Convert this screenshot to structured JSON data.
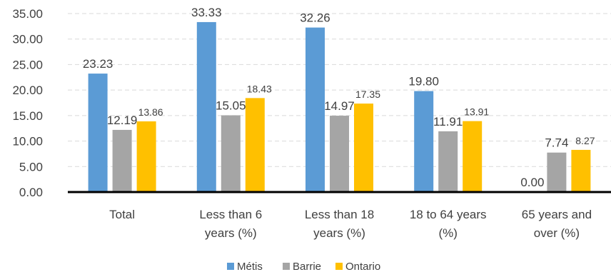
{
  "chart_data": {
    "type": "bar",
    "categories": [
      [
        "Total"
      ],
      [
        "Less than 6",
        "years (%)"
      ],
      [
        "Less than 18",
        "years (%)"
      ],
      [
        "18 to 64 years",
        "(%)"
      ],
      [
        "65 years and",
        "over (%)"
      ]
    ],
    "series": [
      {
        "name": "Métis",
        "color": "#5B9BD5",
        "values": [
          23.23,
          33.33,
          32.26,
          19.8,
          0.0
        ],
        "labels": [
          "23.23",
          "33.33",
          "32.26",
          "19.80",
          "0.00"
        ]
      },
      {
        "name": "Barrie",
        "color": "#A5A5A5",
        "values": [
          12.19,
          15.05,
          14.97,
          11.91,
          7.74
        ],
        "labels": [
          "12.19",
          "15.05",
          "14.97",
          "11.91",
          "7.74"
        ]
      },
      {
        "name": "Ontario",
        "color": "#FFC000",
        "values": [
          13.86,
          18.43,
          17.35,
          13.91,
          8.27
        ],
        "labels": [
          "13.86",
          "18.43",
          "17.35",
          "13.91",
          "8.27"
        ]
      }
    ],
    "ylim": [
      0,
      35
    ],
    "yticks": [
      "0.00",
      "5.00",
      "10.00",
      "15.00",
      "20.00",
      "25.00",
      "30.00",
      "35.00"
    ],
    "grid": true,
    "legend_position": "bottom"
  }
}
